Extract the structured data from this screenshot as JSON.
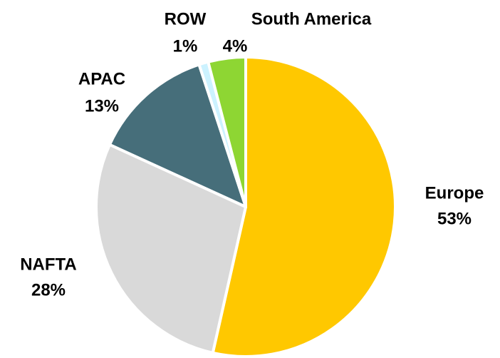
{
  "chart_data": {
    "type": "pie",
    "categories": [
      "Europe",
      "NAFTA",
      "APAC",
      "ROW",
      "South America"
    ],
    "values": [
      53,
      28,
      13,
      1,
      4
    ],
    "value_labels": [
      "53%",
      "28%",
      "13%",
      "1%",
      "4%"
    ],
    "colors": [
      "#FFC800",
      "#D9D9D9",
      "#466E7A",
      "#CCF2FF",
      "#8ED633"
    ]
  }
}
